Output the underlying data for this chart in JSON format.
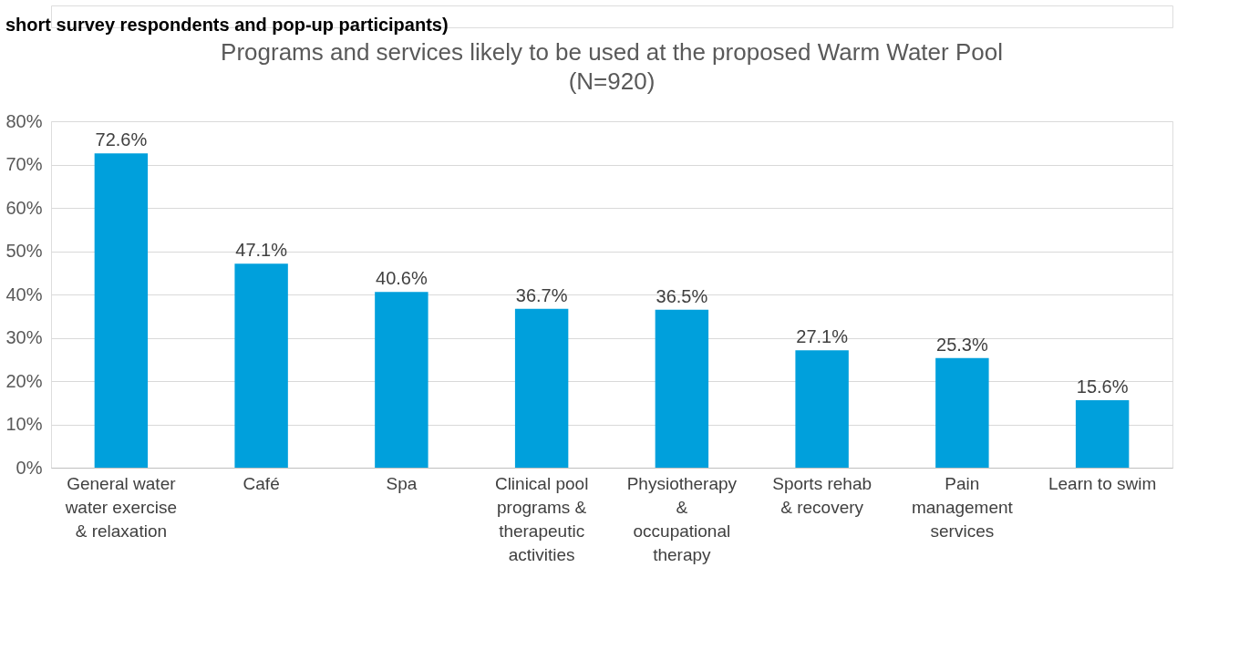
{
  "chart_data": {
    "type": "bar",
    "title": "Programs and services likely to be used at the proposed Warm Water Pool\n(N=920)",
    "categories": [
      "General water\nwater exercise\n& relaxation",
      "Café",
      "Spa",
      "Clinical pool\nprograms &\ntherapeutic\nactivities",
      "Physiotherapy\n&\noccupational\ntherapy",
      "Sports rehab\n& recovery",
      "Pain\nmanagement\nservices",
      "Learn to swim"
    ],
    "values": [
      72.6,
      47.1,
      40.6,
      36.7,
      36.5,
      27.1,
      25.3,
      15.6
    ],
    "value_labels": [
      "72.6%",
      "47.1%",
      "40.6%",
      "36.7%",
      "36.5%",
      "27.1%",
      "25.3%",
      "15.6%"
    ],
    "color": "#00a0dc",
    "ylim": [
      0,
      80
    ],
    "yticks": [
      {
        "value": 0,
        "label": "0%"
      },
      {
        "value": 10,
        "label": "10%"
      },
      {
        "value": 20,
        "label": "20%"
      },
      {
        "value": 30,
        "label": "30%"
      },
      {
        "value": 40,
        "label": "40%"
      },
      {
        "value": 50,
        "label": "50%"
      },
      {
        "value": 60,
        "label": "60%"
      },
      {
        "value": 70,
        "label": "70%"
      },
      {
        "value": 80,
        "label": "80%"
      }
    ],
    "grid": "y",
    "annotations": [
      "short survey respondents and pop-up participants)"
    ]
  }
}
